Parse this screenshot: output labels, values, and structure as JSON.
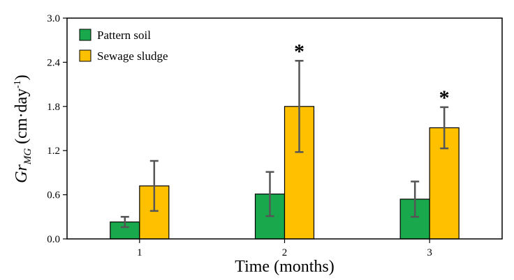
{
  "chart_data": {
    "type": "bar",
    "xlabel": "Time (months)",
    "ylabel": {
      "main": "Gr",
      "subscript": "MG",
      "unit_open": " (cm·day",
      "unit_sup": "-1",
      "unit_close": ")"
    },
    "categories": [
      "1",
      "2",
      "3"
    ],
    "ylim": [
      0,
      3.0
    ],
    "yticks": [
      "0.0",
      "0.6",
      "1.2",
      "1.8",
      "2.4",
      "3.0"
    ],
    "grid": false,
    "legend_position": "top-left",
    "series": [
      {
        "name": "Pattern soil",
        "color": "#1aa84c",
        "values": [
          0.23,
          0.61,
          0.54
        ],
        "errors": [
          0.07,
          0.3,
          0.24
        ],
        "significance": [
          "",
          "",
          ""
        ]
      },
      {
        "name": "Sewage sludge",
        "color": "#ffc000",
        "values": [
          0.72,
          1.8,
          1.51
        ],
        "errors": [
          0.34,
          0.62,
          0.28
        ],
        "significance": [
          "",
          "*",
          "*"
        ]
      }
    ]
  }
}
